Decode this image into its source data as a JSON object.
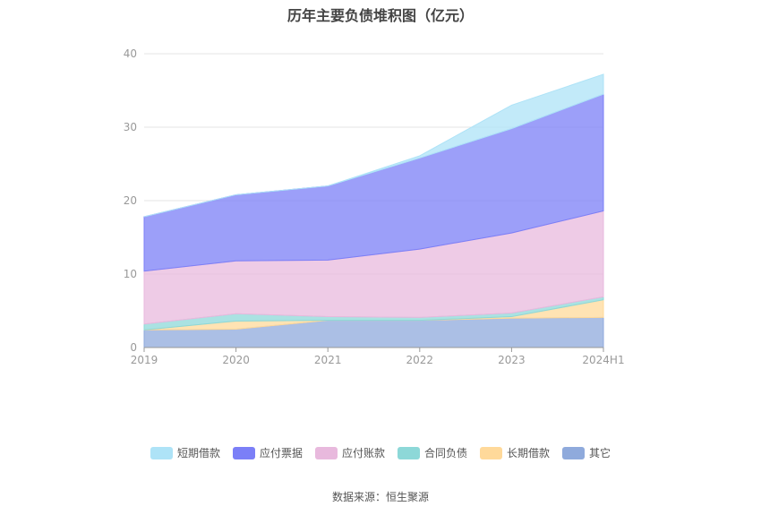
{
  "chart_data": {
    "type": "area",
    "title": "历年主要负债堆积图（亿元）",
    "categories": [
      "2019",
      "2020",
      "2021",
      "2022",
      "2023",
      "2024H1"
    ],
    "ylim": [
      0,
      40
    ],
    "yticks": [
      0,
      10,
      20,
      30,
      40
    ],
    "grid": true,
    "legend_position": "bottom",
    "stacked": true,
    "series": [
      {
        "name": "其它",
        "color": "#8faadc",
        "values": [
          2.4,
          2.5,
          3.7,
          3.7,
          4.0,
          4.1
        ]
      },
      {
        "name": "长期借款",
        "color": "#ffd99a",
        "values": [
          0.0,
          1.1,
          0.0,
          0.0,
          0.2,
          2.4
        ]
      },
      {
        "name": "合同负债",
        "color": "#8dd8d8",
        "values": [
          0.8,
          1.0,
          0.5,
          0.4,
          0.5,
          0.4
        ]
      },
      {
        "name": "应付账款",
        "color": "#e8b9dd",
        "values": [
          7.2,
          7.2,
          7.7,
          9.3,
          10.9,
          11.7
        ]
      },
      {
        "name": "应付票据",
        "color": "#7b7ff7",
        "values": [
          7.4,
          9.0,
          10.1,
          12.4,
          14.2,
          15.9
        ]
      },
      {
        "name": "短期借款",
        "color": "#aee3f7",
        "values": [
          0.0,
          0.0,
          0.0,
          0.3,
          3.2,
          2.7
        ]
      }
    ],
    "source": "数据来源：恒生聚源"
  }
}
